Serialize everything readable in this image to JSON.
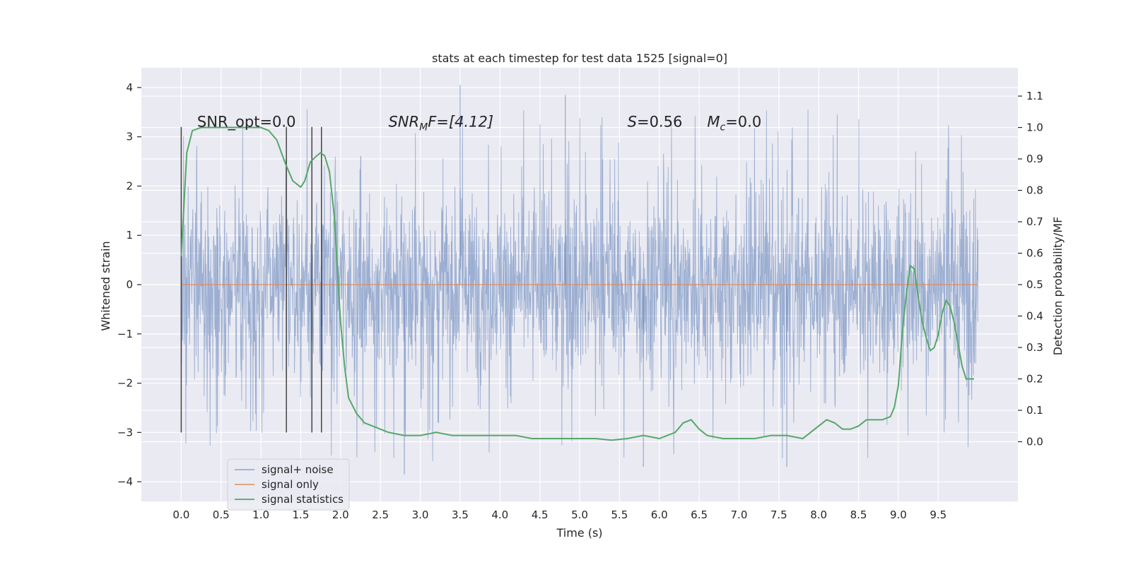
{
  "chart_data": {
    "type": "line",
    "title": "stats at each timestep for test data 1525 [signal=0]",
    "xlabel": "Time (s)",
    "ylabel_left": "Whitened strain",
    "ylabel_right": "Detection probability/MF",
    "xlim": [
      -0.5,
      10.5
    ],
    "ylim_left": [
      -4.4,
      4.4
    ],
    "ylim_right": [
      -0.19,
      1.19
    ],
    "x_ticks": [
      0.0,
      0.5,
      1.0,
      1.5,
      2.0,
      2.5,
      3.0,
      3.5,
      4.0,
      4.5,
      5.0,
      5.5,
      6.0,
      6.5,
      7.0,
      7.5,
      8.0,
      8.5,
      9.0,
      9.5
    ],
    "x_tick_labels": [
      "0.0",
      "0.5",
      "1.0",
      "1.5",
      "2.0",
      "2.5",
      "3.0",
      "3.5",
      "4.0",
      "4.5",
      "5.0",
      "5.5",
      "6.0",
      "6.5",
      "7.0",
      "7.5",
      "8.0",
      "8.5",
      "9.0",
      "9.5"
    ],
    "y_ticks_left": [
      4,
      3,
      2,
      1,
      0,
      -1,
      -2,
      -3,
      -4
    ],
    "y_tick_labels_left": [
      "4",
      "3",
      "2",
      "1",
      "0",
      "−1",
      "−2",
      "−3",
      "−4"
    ],
    "y_ticks_right": [
      1.1,
      1.0,
      0.9,
      0.8,
      0.7,
      0.6,
      0.5,
      0.4,
      0.3,
      0.2,
      0.1,
      0.0
    ],
    "y_tick_labels_right": [
      "1.1",
      "1.0",
      "0.9",
      "0.8",
      "0.7",
      "0.6",
      "0.5",
      "0.4",
      "0.3",
      "0.2",
      "0.1",
      "0.0"
    ],
    "grid": true,
    "legend_position": "lower-left",
    "series": [
      {
        "name": "signal+ noise",
        "color": "#4c72b0",
        "axis": "left",
        "style": "dense-noise",
        "x_range": [
          0.0,
          10.0
        ],
        "core_range": [
          -1.2,
          1.3
        ],
        "typical_extreme": [
          -2.6,
          2.6
        ],
        "max": 4.05,
        "min": -3.85
      },
      {
        "name": "signal only",
        "color": "#dd8452",
        "axis": "left",
        "x": [
          0.0,
          10.0
        ],
        "y": [
          0.0,
          0.0
        ]
      },
      {
        "name": "signal statistics",
        "color": "#55a868",
        "axis": "right",
        "x": [
          0.0,
          0.07,
          0.14,
          0.25,
          0.4,
          0.6,
          0.8,
          1.0,
          1.1,
          1.2,
          1.3,
          1.4,
          1.5,
          1.55,
          1.62,
          1.7,
          1.75,
          1.8,
          1.86,
          1.92,
          2.0,
          2.05,
          2.1,
          2.2,
          2.3,
          2.4,
          2.6,
          2.8,
          3.0,
          3.2,
          3.4,
          3.6,
          3.8,
          4.0,
          4.2,
          4.4,
          4.6,
          4.8,
          5.0,
          5.2,
          5.4,
          5.6,
          5.8,
          6.0,
          6.2,
          6.3,
          6.4,
          6.5,
          6.6,
          6.8,
          7.0,
          7.2,
          7.4,
          7.6,
          7.8,
          8.0,
          8.1,
          8.2,
          8.3,
          8.4,
          8.5,
          8.6,
          8.7,
          8.8,
          8.9,
          8.95,
          9.0,
          9.05,
          9.1,
          9.15,
          9.2,
          9.25,
          9.3,
          9.35,
          9.4,
          9.45,
          9.5,
          9.55,
          9.6,
          9.65,
          9.7,
          9.75,
          9.8,
          9.85,
          9.9,
          9.95
        ],
        "y": [
          0.59,
          0.92,
          0.99,
          1.0,
          1.0,
          1.0,
          1.0,
          1.0,
          0.99,
          0.96,
          0.89,
          0.83,
          0.81,
          0.83,
          0.89,
          0.91,
          0.92,
          0.91,
          0.86,
          0.72,
          0.38,
          0.24,
          0.14,
          0.09,
          0.06,
          0.05,
          0.03,
          0.02,
          0.02,
          0.03,
          0.02,
          0.02,
          0.02,
          0.02,
          0.02,
          0.01,
          0.01,
          0.01,
          0.01,
          0.01,
          0.005,
          0.01,
          0.02,
          0.01,
          0.03,
          0.06,
          0.07,
          0.04,
          0.02,
          0.01,
          0.01,
          0.01,
          0.02,
          0.02,
          0.01,
          0.05,
          0.07,
          0.06,
          0.04,
          0.04,
          0.05,
          0.07,
          0.07,
          0.07,
          0.08,
          0.11,
          0.18,
          0.35,
          0.47,
          0.56,
          0.55,
          0.46,
          0.38,
          0.33,
          0.29,
          0.3,
          0.34,
          0.41,
          0.45,
          0.43,
          0.38,
          0.31,
          0.24,
          0.2,
          0.2,
          0.2
        ]
      }
    ],
    "vertical_markers": {
      "color": "#444444",
      "x": [
        0.0,
        1.32,
        1.64,
        1.76
      ],
      "ymin": -3.0,
      "ymax": 3.2
    },
    "annotations": [
      {
        "id": "snr-opt",
        "text": "SNR_opt=0.0",
        "x": 0.2,
        "y": 3.2
      },
      {
        "id": "snr-mf",
        "base": "SNR",
        "sub": "M",
        "tail": "F=[4.12]",
        "x": 2.6,
        "y": 3.2
      },
      {
        "id": "s-stat",
        "italic": "S",
        "tail": "=0.56",
        "x": 5.6,
        "y": 3.2
      },
      {
        "id": "mc-stat",
        "italic": "M",
        "sub": "c",
        "tail": "=0.0",
        "x": 6.6,
        "y": 3.2
      }
    ],
    "background_color": "#eaeaf2",
    "grid_color": "#ffffff"
  }
}
